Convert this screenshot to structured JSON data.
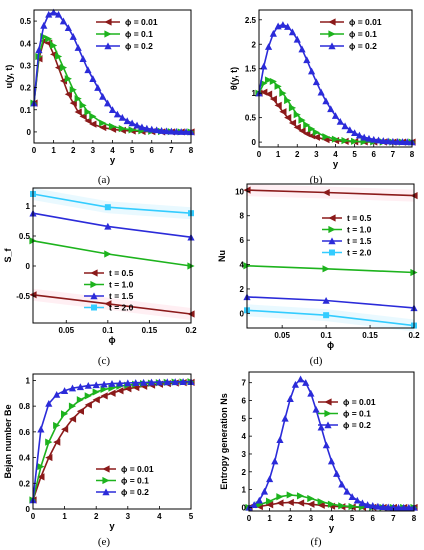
{
  "figure": {
    "panel_captions": [
      "(a)",
      "(b)",
      "(c)",
      "(d)",
      "(e)",
      "(f)"
    ],
    "colors": {
      "dark_red": "#8B1A1A",
      "green": "#1DB31D",
      "blue": "#2B2BD9",
      "cyan": "#33CCFF",
      "shading": "#FFE0E8"
    }
  },
  "chart_data": [
    {
      "type": "line",
      "panel": "(a)",
      "xlabel": "y",
      "ylabel": "u(y, t)",
      "xlim": [
        0,
        8
      ],
      "ylim": [
        -0.05,
        0.55
      ],
      "xticks": [
        0,
        1,
        2,
        3,
        4,
        5,
        6,
        7,
        8
      ],
      "yticks": [
        0,
        0.1,
        0.2,
        0.3,
        0.4,
        0.5
      ],
      "ytick_labels": [
        "0",
        "0.1",
        "0.2",
        "0.3",
        "0.4",
        "0.5"
      ],
      "legend_position": "top-right",
      "series": [
        {
          "name": "ϕ = 0.01",
          "color": "#8B1A1A",
          "marker": "triangle-left",
          "x": [
            0,
            0.25,
            0.5,
            0.75,
            1,
            1.25,
            1.5,
            1.75,
            2,
            2.25,
            2.5,
            2.75,
            3,
            3.5,
            4,
            4.5,
            5,
            5.5,
            6,
            6.5,
            7,
            7.5,
            8
          ],
          "y": [
            0.13,
            0.33,
            0.41,
            0.4,
            0.35,
            0.29,
            0.23,
            0.17,
            0.13,
            0.09,
            0.07,
            0.05,
            0.035,
            0.02,
            0.012,
            0.007,
            0.004,
            0.002,
            0.001,
            0.0,
            0.0,
            0.0,
            0.0
          ]
        },
        {
          "name": "ϕ = 0.1",
          "color": "#1DB31D",
          "marker": "triangle-right",
          "x": [
            0,
            0.25,
            0.5,
            0.75,
            1,
            1.25,
            1.5,
            1.75,
            2,
            2.25,
            2.5,
            2.75,
            3,
            3.5,
            4,
            4.5,
            5,
            5.5,
            6,
            6.5,
            7,
            7.5,
            8
          ],
          "y": [
            0.13,
            0.34,
            0.43,
            0.42,
            0.39,
            0.34,
            0.29,
            0.24,
            0.19,
            0.15,
            0.12,
            0.09,
            0.07,
            0.04,
            0.025,
            0.015,
            0.009,
            0.005,
            0.003,
            0.002,
            0.001,
            0.0,
            0.0
          ]
        },
        {
          "name": "ϕ = 0.2",
          "color": "#2B2BD9",
          "marker": "triangle-up",
          "x": [
            0,
            0.25,
            0.5,
            0.75,
            1,
            1.25,
            1.5,
            1.75,
            2,
            2.25,
            2.5,
            2.75,
            3,
            3.25,
            3.5,
            3.75,
            4,
            4.25,
            4.5,
            4.75,
            5,
            5.25,
            5.5,
            5.75,
            6,
            6.25,
            6.5,
            6.75,
            7,
            7.25,
            7.5,
            7.75,
            8
          ],
          "y": [
            0.13,
            0.37,
            0.48,
            0.53,
            0.54,
            0.53,
            0.5,
            0.47,
            0.43,
            0.38,
            0.33,
            0.28,
            0.24,
            0.2,
            0.16,
            0.13,
            0.1,
            0.08,
            0.065,
            0.05,
            0.04,
            0.03,
            0.022,
            0.016,
            0.012,
            0.009,
            0.006,
            0.004,
            0.003,
            0.002,
            0.001,
            0.001,
            0.0
          ]
        }
      ]
    },
    {
      "type": "line",
      "panel": "(b)",
      "xlabel": "y",
      "ylabel": "θ(y, t)",
      "xlim": [
        0,
        8
      ],
      "ylim": [
        -0.1,
        2.7
      ],
      "xticks": [
        0,
        1,
        2,
        3,
        4,
        5,
        6,
        7,
        8
      ],
      "yticks": [
        0,
        0.5,
        1,
        1.5,
        2,
        2.5
      ],
      "ytick_labels": [
        "0",
        "0.5",
        "1",
        "1.5",
        "2",
        "2.5"
      ],
      "legend_position": "top-right",
      "series": [
        {
          "name": "ϕ = 0.01",
          "color": "#8B1A1A",
          "marker": "triangle-left",
          "x": [
            0,
            0.25,
            0.5,
            0.75,
            1,
            1.25,
            1.5,
            1.75,
            2,
            2.25,
            2.5,
            2.75,
            3,
            3.5,
            4,
            4.5,
            5,
            5.5,
            6,
            6.5,
            7,
            7.5,
            8
          ],
          "y": [
            1.0,
            1.02,
            0.98,
            0.88,
            0.75,
            0.62,
            0.5,
            0.39,
            0.3,
            0.23,
            0.17,
            0.13,
            0.1,
            0.05,
            0.03,
            0.015,
            0.008,
            0.004,
            0.002,
            0.001,
            0.0,
            0.0,
            0.0
          ]
        },
        {
          "name": "ϕ = 0.1",
          "color": "#1DB31D",
          "marker": "triangle-right",
          "x": [
            0,
            0.25,
            0.5,
            0.75,
            1,
            1.25,
            1.5,
            1.75,
            2,
            2.25,
            2.5,
            2.75,
            3,
            3.5,
            4,
            4.5,
            5,
            5.5,
            6,
            6.5,
            7,
            7.5,
            8
          ],
          "y": [
            1.0,
            1.2,
            1.27,
            1.24,
            1.14,
            1.0,
            0.85,
            0.7,
            0.56,
            0.45,
            0.35,
            0.27,
            0.2,
            0.11,
            0.06,
            0.03,
            0.016,
            0.008,
            0.004,
            0.002,
            0.001,
            0.0,
            0.0
          ]
        },
        {
          "name": "ϕ = 0.2",
          "color": "#2B2BD9",
          "marker": "triangle-up",
          "x": [
            0,
            0.25,
            0.5,
            0.75,
            1,
            1.25,
            1.5,
            1.75,
            2,
            2.25,
            2.5,
            2.75,
            3,
            3.25,
            3.5,
            3.75,
            4,
            4.25,
            4.5,
            4.75,
            5,
            5.25,
            5.5,
            5.75,
            6,
            6.25,
            6.5,
            6.75,
            7,
            7.25,
            7.5,
            7.75,
            8
          ],
          "y": [
            1.0,
            1.55,
            1.95,
            2.22,
            2.37,
            2.4,
            2.36,
            2.25,
            2.1,
            1.9,
            1.68,
            1.45,
            1.23,
            1.02,
            0.84,
            0.68,
            0.54,
            0.42,
            0.33,
            0.25,
            0.19,
            0.14,
            0.1,
            0.075,
            0.055,
            0.04,
            0.028,
            0.02,
            0.014,
            0.01,
            0.007,
            0.005,
            0.003
          ]
        }
      ]
    },
    {
      "type": "line",
      "panel": "(c)",
      "xlabel": "ϕ",
      "ylabel": "S_f",
      "xlim": [
        0.01,
        0.2
      ],
      "ylim": [
        -0.95,
        1.3
      ],
      "xticks": [
        0.05,
        0.1,
        0.15,
        0.2
      ],
      "xtick_labels": [
        "0.05",
        "0.1",
        "0.15",
        "0.2"
      ],
      "yticks": [
        -0.5,
        0,
        0.5,
        1
      ],
      "ytick_labels": [
        "-0.5",
        "0",
        "0.5",
        "1"
      ],
      "legend_position": "bottom-right",
      "series": [
        {
          "name": "t = 0.5",
          "color": "#8B1A1A",
          "marker": "triangle-left",
          "x": [
            0.01,
            0.1,
            0.2
          ],
          "y": [
            -0.48,
            -0.63,
            -0.8
          ]
        },
        {
          "name": "t = 1.0",
          "color": "#1DB31D",
          "marker": "triangle-right",
          "x": [
            0.01,
            0.1,
            0.2
          ],
          "y": [
            0.42,
            0.2,
            0.0
          ]
        },
        {
          "name": "t = 1.5",
          "color": "#2B2BD9",
          "marker": "triangle-up",
          "x": [
            0.01,
            0.1,
            0.2
          ],
          "y": [
            0.88,
            0.66,
            0.48
          ]
        },
        {
          "name": "t = 2.0",
          "color": "#33CCFF",
          "marker": "square",
          "x": [
            0.01,
            0.1,
            0.2
          ],
          "y": [
            1.2,
            0.98,
            0.88
          ]
        }
      ]
    },
    {
      "type": "line",
      "panel": "(d)",
      "xlabel": "ϕ",
      "ylabel": "Nu",
      "xlim": [
        0.01,
        0.2
      ],
      "ylim": [
        -1.2,
        10.6
      ],
      "xticks": [
        0.05,
        0.1,
        0.15,
        0.2
      ],
      "xtick_labels": [
        "0.05",
        "0.1",
        "0.15",
        "0.2"
      ],
      "yticks": [
        0,
        2,
        4,
        6,
        8,
        10
      ],
      "ytick_labels": [
        "0",
        "2",
        "4",
        "6",
        "8",
        "10"
      ],
      "legend_position": "right",
      "series": [
        {
          "name": "t = 0.5",
          "color": "#8B1A1A",
          "marker": "triangle-left",
          "x": [
            0.01,
            0.1,
            0.2
          ],
          "y": [
            10.1,
            9.9,
            9.65
          ]
        },
        {
          "name": "t = 1.0",
          "color": "#1DB31D",
          "marker": "triangle-right",
          "x": [
            0.01,
            0.1,
            0.2
          ],
          "y": [
            3.9,
            3.65,
            3.35
          ]
        },
        {
          "name": "t = 1.5",
          "color": "#2B2BD9",
          "marker": "triangle-up",
          "x": [
            0.01,
            0.1,
            0.2
          ],
          "y": [
            1.35,
            1.05,
            0.45
          ]
        },
        {
          "name": "t = 2.0",
          "color": "#33CCFF",
          "marker": "square",
          "x": [
            0.01,
            0.1,
            0.2
          ],
          "y": [
            0.25,
            -0.15,
            -1.0
          ]
        }
      ]
    },
    {
      "type": "line",
      "panel": "(e)",
      "xlabel": "y",
      "ylabel": "Bejan number Be",
      "xlim": [
        0,
        5
      ],
      "ylim": [
        0,
        1.05
      ],
      "xticks": [
        0,
        1,
        2,
        3,
        4,
        5
      ],
      "yticks": [
        0,
        0.2,
        0.4,
        0.6,
        0.8,
        1
      ],
      "ytick_labels": [
        "0",
        "0.2",
        "0.4",
        "0.6",
        "0.8",
        "1"
      ],
      "legend_position": "bottom-right",
      "series": [
        {
          "name": "ϕ = 0.01",
          "color": "#8B1A1A",
          "marker": "triangle-left",
          "x": [
            0,
            0.25,
            0.5,
            0.75,
            1,
            1.25,
            1.5,
            1.75,
            2,
            2.25,
            2.5,
            2.75,
            3,
            3.25,
            3.5,
            3.75,
            4,
            4.25,
            4.5,
            4.75,
            5
          ],
          "y": [
            0.07,
            0.25,
            0.4,
            0.52,
            0.62,
            0.7,
            0.76,
            0.81,
            0.85,
            0.88,
            0.9,
            0.92,
            0.935,
            0.945,
            0.955,
            0.963,
            0.97,
            0.975,
            0.98,
            0.983,
            0.985
          ]
        },
        {
          "name": "ϕ = 0.1",
          "color": "#1DB31D",
          "marker": "triangle-right",
          "x": [
            0,
            0.25,
            0.5,
            0.75,
            1,
            1.25,
            1.5,
            1.75,
            2,
            2.25,
            2.5,
            2.75,
            3,
            3.25,
            3.5,
            3.75,
            4,
            4.25,
            4.5,
            4.75,
            5
          ],
          "y": [
            0.07,
            0.33,
            0.52,
            0.65,
            0.74,
            0.8,
            0.85,
            0.88,
            0.91,
            0.93,
            0.94,
            0.955,
            0.963,
            0.97,
            0.975,
            0.979,
            0.982,
            0.985,
            0.987,
            0.988,
            0.99
          ]
        },
        {
          "name": "ϕ = 0.2",
          "color": "#2B2BD9",
          "marker": "triangle-up",
          "x": [
            0,
            0.25,
            0.5,
            0.75,
            1,
            1.25,
            1.5,
            1.75,
            2,
            2.25,
            2.5,
            2.75,
            3,
            3.25,
            3.5,
            3.75,
            4,
            4.25,
            4.5,
            4.75,
            5
          ],
          "y": [
            0.07,
            0.62,
            0.82,
            0.89,
            0.92,
            0.94,
            0.95,
            0.96,
            0.965,
            0.97,
            0.975,
            0.978,
            0.98,
            0.982,
            0.984,
            0.986,
            0.987,
            0.988,
            0.989,
            0.99,
            0.99
          ]
        }
      ]
    },
    {
      "type": "line",
      "panel": "(f)",
      "xlabel": "y",
      "ylabel": "Entropy generation Ns",
      "xlim": [
        0,
        8
      ],
      "ylim": [
        -0.2,
        7.6
      ],
      "xticks": [
        0,
        1,
        2,
        3,
        4,
        5,
        6,
        7,
        8
      ],
      "yticks": [
        0,
        1,
        2,
        3,
        4,
        5,
        6,
        7
      ],
      "legend_position": "top-right",
      "series": [
        {
          "name": "ϕ = 0.01",
          "color": "#8B1A1A",
          "marker": "triangle-left",
          "x": [
            0,
            0.5,
            1,
            1.5,
            2,
            2.5,
            3,
            3.5,
            4,
            4.5,
            5,
            5.5,
            6,
            6.5,
            7,
            7.5,
            8
          ],
          "y": [
            0.0,
            0.05,
            0.15,
            0.25,
            0.28,
            0.25,
            0.18,
            0.12,
            0.07,
            0.04,
            0.02,
            0.01,
            0.005,
            0.0,
            0.0,
            0.0,
            0.0
          ]
        },
        {
          "name": "ϕ = 0.1",
          "color": "#1DB31D",
          "marker": "triangle-right",
          "x": [
            0,
            0.5,
            1,
            1.5,
            2,
            2.5,
            3,
            3.5,
            4,
            4.5,
            5,
            5.5,
            6,
            6.5,
            7,
            7.5,
            8
          ],
          "y": [
            0.0,
            0.15,
            0.35,
            0.6,
            0.7,
            0.65,
            0.5,
            0.32,
            0.18,
            0.09,
            0.05,
            0.02,
            0.01,
            0.0,
            0.0,
            0.0,
            0.0
          ]
        },
        {
          "name": "ϕ = 0.2",
          "color": "#2B2BD9",
          "marker": "triangle-up",
          "x": [
            0,
            0.25,
            0.5,
            0.75,
            1,
            1.25,
            1.5,
            1.75,
            2,
            2.25,
            2.5,
            2.75,
            3,
            3.25,
            3.5,
            3.75,
            4,
            4.25,
            4.5,
            4.75,
            5,
            5.25,
            5.5,
            5.75,
            6,
            6.25,
            6.5,
            6.75,
            7,
            7.25,
            7.5,
            7.75,
            8
          ],
          "y": [
            0.0,
            0.15,
            0.4,
            0.9,
            1.6,
            2.6,
            3.8,
            5.0,
            6.1,
            6.9,
            7.2,
            7.0,
            6.4,
            5.5,
            4.5,
            3.5,
            2.6,
            1.9,
            1.3,
            0.9,
            0.6,
            0.4,
            0.25,
            0.15,
            0.1,
            0.06,
            0.04,
            0.02,
            0.01,
            0.0,
            0.0,
            0.0,
            0.0
          ]
        }
      ]
    }
  ]
}
